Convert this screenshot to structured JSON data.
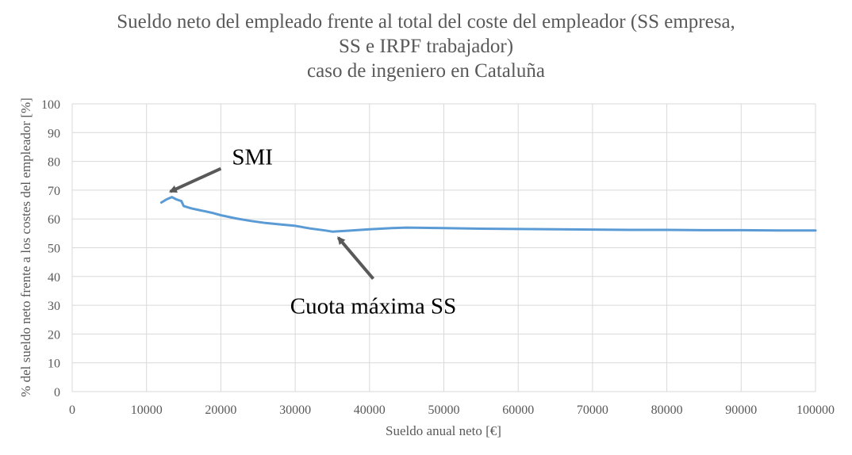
{
  "chart_data": {
    "type": "line",
    "title_lines": [
      "Sueldo neto del empleado frente al total del coste del empleador (SS empresa,",
      "SS e IRPF trabajador)",
      "caso de ingeniero en Cataluña"
    ],
    "xlabel": "Sueldo anual neto [€]",
    "ylabel": "% del sueldo neto frente a los costes del empleador [%]",
    "xlim": [
      0,
      100000
    ],
    "ylim": [
      0,
      100
    ],
    "x_ticks": [
      0,
      10000,
      20000,
      30000,
      40000,
      50000,
      60000,
      70000,
      80000,
      90000,
      100000
    ],
    "y_ticks": [
      0,
      10,
      20,
      30,
      40,
      50,
      60,
      70,
      80,
      90,
      100
    ],
    "grid": true,
    "series": [
      {
        "color": "#5b9bd5",
        "x": [
          12000,
          12700,
          13400,
          14000,
          14700,
          15000,
          16000,
          17000,
          18000,
          19000,
          20000,
          22000,
          24000,
          26000,
          28000,
          30000,
          32000,
          34000,
          35000,
          37000,
          40000,
          43000,
          45000,
          50000,
          55000,
          60000,
          65000,
          70000,
          75000,
          80000,
          85000,
          90000,
          95000,
          100000
        ],
        "y": [
          65.7,
          66.8,
          67.6,
          66.8,
          66.2,
          64.5,
          63.7,
          63.1,
          62.6,
          62.0,
          61.3,
          60.2,
          59.3,
          58.6,
          58.1,
          57.6,
          56.7,
          56.0,
          55.6,
          55.9,
          56.4,
          56.8,
          57.0,
          56.8,
          56.6,
          56.5,
          56.4,
          56.3,
          56.2,
          56.2,
          56.1,
          56.1,
          56.0,
          56.0
        ]
      }
    ],
    "annotations": [
      {
        "text": "SMI",
        "arrow_to": [
          13200,
          69.5
        ],
        "arrow_from": [
          20000,
          77.5
        ]
      },
      {
        "text": "Cuota máxima SS",
        "arrow_to": [
          35800,
          53.5
        ],
        "arrow_from": [
          40500,
          39.2
        ]
      }
    ],
    "colors": {
      "line": "#5b9bd5",
      "grid": "#d9d9d9",
      "text": "#595959",
      "annotation_text": "#000000",
      "arrow": "#595959"
    }
  }
}
